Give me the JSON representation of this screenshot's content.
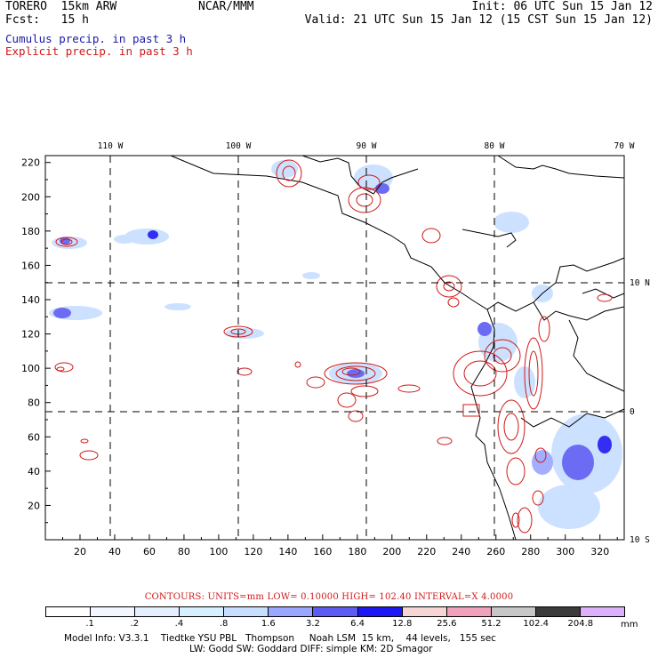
{
  "header": {
    "model": "TORERO  15km ARW",
    "org": "NCAR/MMM",
    "init": "Init: 06 UTC Sun 15 Jan 12",
    "fcst": "Fcst:   15 h",
    "valid": "Valid: 21 UTC Sun 15 Jan 12 (15 CST Sun 15 Jan 12)"
  },
  "legend": {
    "cumulus": "Cumulus precip. in past 3 h",
    "explicit": "Explicit precip. in past 3 h",
    "cumulus_color": "#1a1aa8",
    "explicit_color": "#d01818"
  },
  "map": {
    "lon_labels": [
      "110 W",
      "100 W",
      "90 W",
      "80 W",
      "70 W"
    ],
    "lat_labels": [
      "10 N",
      "0",
      "10 S"
    ],
    "y_grid_ticks": [
      "220",
      "200",
      "180",
      "160",
      "140",
      "120",
      "100",
      "80",
      "60",
      "40",
      "20"
    ],
    "x_grid_ticks": [
      "20",
      "40",
      "60",
      "80",
      "100",
      "120",
      "140",
      "160",
      "180",
      "200",
      "220",
      "240",
      "260",
      "280",
      "300",
      "320"
    ]
  },
  "contours_info": "CONTOURS:  UNITS=mm  LOW= 0.10000      HIGH=  102.40      INTERVAL=X  4.0000",
  "colorbar": {
    "colors": [
      "#ffffff",
      "#f2f7ff",
      "#e4efff",
      "#d7f0ff",
      "#c7deff",
      "#9aa6ff",
      "#5d5cf2",
      "#1c18f3",
      "#f6d5d5",
      "#f0a2bc",
      "#c7c7c7",
      "#3b3b3b",
      "#dcb0fa"
    ],
    "labels": [
      ".1",
      ".2",
      ".4",
      ".8",
      "1.6",
      "3.2",
      "6.4",
      "12.8",
      "25.6",
      "51.2",
      "102.4",
      "204.8"
    ],
    "units": "mm"
  },
  "model_info": {
    "line1": "Model Info: V3.3.1    Tiedtke YSU PBL   Thompson     Noah LSM  15 km,    44 levels,   155 sec",
    "line2": "LW: Godd SW: Goddard DIFF: simple KM: 2D Smagor"
  }
}
